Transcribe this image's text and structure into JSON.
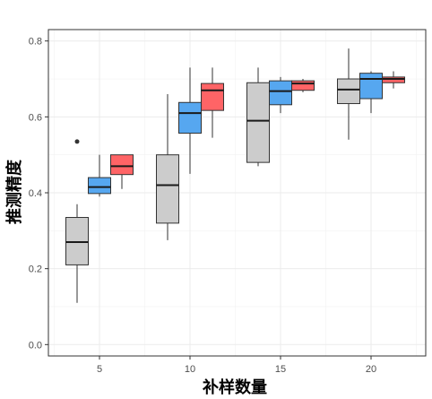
{
  "chart_data": {
    "type": "boxplot",
    "title": "",
    "xlabel": "补样数量",
    "ylabel": "推测精度",
    "categories": [
      "5",
      "10",
      "15",
      "20"
    ],
    "ylim": [
      -0.03,
      0.83
    ],
    "yticks": [
      0.0,
      0.2,
      0.4,
      0.6,
      0.8
    ],
    "ytick_labels": [
      "0.0",
      "0.2",
      "0.4",
      "0.6",
      "0.8"
    ],
    "grid": true,
    "legend": "none",
    "series": [
      {
        "color": "#cccccc",
        "boxes": [
          {
            "category": "5",
            "min": 0.11,
            "q1": 0.21,
            "median": 0.27,
            "q3": 0.335,
            "max": 0.37,
            "outliers": [
              0.535
            ]
          },
          {
            "category": "10",
            "min": 0.275,
            "q1": 0.32,
            "median": 0.42,
            "q3": 0.5,
            "max": 0.66,
            "outliers": []
          },
          {
            "category": "15",
            "min": 0.47,
            "q1": 0.48,
            "median": 0.59,
            "q3": 0.69,
            "max": 0.73,
            "outliers": []
          },
          {
            "category": "20",
            "min": 0.54,
            "q1": 0.635,
            "median": 0.672,
            "q3": 0.7,
            "max": 0.78,
            "outliers": []
          }
        ]
      },
      {
        "color": "#56a7f0",
        "boxes": [
          {
            "category": "5",
            "min": 0.39,
            "q1": 0.398,
            "median": 0.415,
            "q3": 0.44,
            "max": 0.5,
            "outliers": []
          },
          {
            "category": "10",
            "min": 0.45,
            "q1": 0.557,
            "median": 0.61,
            "q3": 0.638,
            "max": 0.73,
            "outliers": []
          },
          {
            "category": "15",
            "min": 0.61,
            "q1": 0.632,
            "median": 0.668,
            "q3": 0.695,
            "max": 0.705,
            "outliers": []
          },
          {
            "category": "20",
            "min": 0.61,
            "q1": 0.648,
            "median": 0.7,
            "q3": 0.715,
            "max": 0.72,
            "outliers": []
          }
        ]
      },
      {
        "color": "#ff6466",
        "boxes": [
          {
            "category": "5",
            "min": 0.41,
            "q1": 0.448,
            "median": 0.47,
            "q3": 0.5,
            "max": 0.5,
            "outliers": []
          },
          {
            "category": "10",
            "min": 0.545,
            "q1": 0.617,
            "median": 0.67,
            "q3": 0.688,
            "max": 0.73,
            "outliers": []
          },
          {
            "category": "15",
            "min": 0.665,
            "q1": 0.67,
            "median": 0.688,
            "q3": 0.695,
            "max": 0.7,
            "outliers": []
          },
          {
            "category": "20",
            "min": 0.675,
            "q1": 0.69,
            "median": 0.7,
            "q3": 0.705,
            "max": 0.72,
            "outliers": []
          }
        ]
      }
    ]
  }
}
